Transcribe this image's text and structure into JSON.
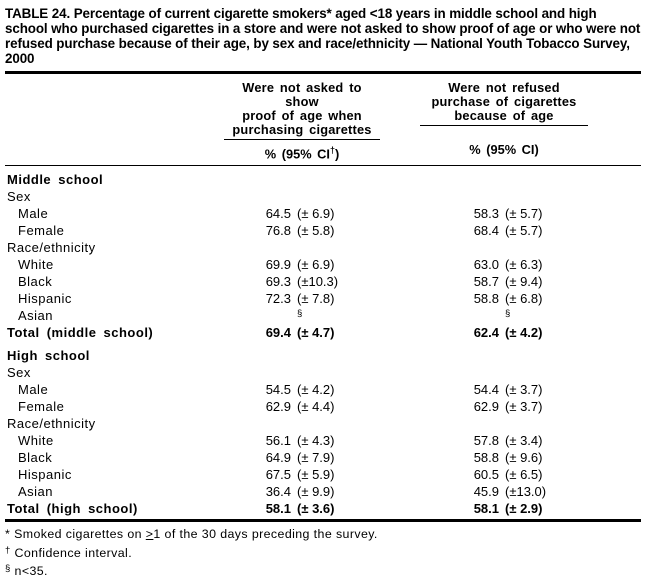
{
  "title": "TABLE 24. Percentage of current cigarette smokers* aged <18 years in middle school and high school who purchased cigarettes in a store and were not asked to show proof of age or who were not refused purchase because of their age, by sex and race/ethnicity — National Youth Tobacco Survey, 2000",
  "header": {
    "group1_lines": [
      "Were not asked to show",
      "proof of age when",
      "purchasing cigarettes"
    ],
    "group2_lines": [
      "Were not refused",
      "purchase of cigarettes",
      "because of age"
    ],
    "sub1_pre": "% (95% CI",
    "sub1_sup": "†",
    "sub1_post": ")",
    "sub2": "% (95% CI)"
  },
  "table": {
    "rows": [
      {
        "type": "section",
        "label": "Middle school"
      },
      {
        "type": "group",
        "label": "Sex"
      },
      {
        "type": "data",
        "label": "Male",
        "v1": "64.5",
        "ci1": "(± 6.9)",
        "v2": "58.3",
        "ci2": "(± 5.7)"
      },
      {
        "type": "data",
        "label": "Female",
        "v1": "76.8",
        "ci1": "(± 5.8)",
        "v2": "68.4",
        "ci2": "(± 5.7)"
      },
      {
        "type": "group",
        "label": "Race/ethnicity"
      },
      {
        "type": "data",
        "label": "White",
        "v1": "69.9",
        "ci1": "(± 6.9)",
        "v2": "63.0",
        "ci2": "(± 6.3)"
      },
      {
        "type": "data",
        "label": "Black",
        "v1": "69.3",
        "ci1": "(±10.3)",
        "v2": "58.7",
        "ci2": "(± 9.4)"
      },
      {
        "type": "data",
        "label": "Hispanic",
        "v1": "72.3",
        "ci1": "(± 7.8)",
        "v2": "58.8",
        "ci2": "(± 6.8)"
      },
      {
        "type": "data",
        "label": "Asian",
        "v1": "",
        "ci1": "§",
        "sup1": true,
        "v2": "",
        "ci2": "§",
        "sup2": true
      },
      {
        "type": "total",
        "label": "Total (middle school)",
        "v1": "69.4",
        "ci1": "(± 4.7)",
        "v2": "62.4",
        "ci2": "(± 4.2)"
      },
      {
        "type": "section",
        "label": "High school",
        "spaced": true
      },
      {
        "type": "group",
        "label": "Sex"
      },
      {
        "type": "data",
        "label": "Male",
        "v1": "54.5",
        "ci1": "(± 4.2)",
        "v2": "54.4",
        "ci2": "(± 3.7)"
      },
      {
        "type": "data",
        "label": "Female",
        "v1": "62.9",
        "ci1": "(± 4.4)",
        "v2": "62.9",
        "ci2": "(± 3.7)"
      },
      {
        "type": "group",
        "label": "Race/ethnicity"
      },
      {
        "type": "data",
        "label": "White",
        "v1": "56.1",
        "ci1": "(± 4.3)",
        "v2": "57.8",
        "ci2": "(± 3.4)"
      },
      {
        "type": "data",
        "label": "Black",
        "v1": "64.9",
        "ci1": "(± 7.9)",
        "v2": "58.8",
        "ci2": "(± 9.6)"
      },
      {
        "type": "data",
        "label": "Hispanic",
        "v1": "67.5",
        "ci1": "(± 5.9)",
        "v2": "60.5",
        "ci2": "(± 6.5)"
      },
      {
        "type": "data",
        "label": "Asian",
        "v1": "36.4",
        "ci1": "(± 9.9)",
        "v2": "45.9",
        "ci2": "(±13.0)"
      },
      {
        "type": "total",
        "label": "Total (high school)",
        "v1": "58.1",
        "ci1": "(± 3.6)",
        "v2": "58.1",
        "ci2": "(± 2.9)"
      }
    ]
  },
  "footnotes": {
    "f1": {
      "marker": "*",
      "text_before": " Smoked cigarettes on ",
      "underlined": ">",
      "text_after": "1 of the 30 days preceding the survey."
    },
    "f2": {
      "marker": "†",
      "text": " Confidence interval."
    },
    "f3": {
      "marker": "§",
      "text": " n<35."
    }
  }
}
